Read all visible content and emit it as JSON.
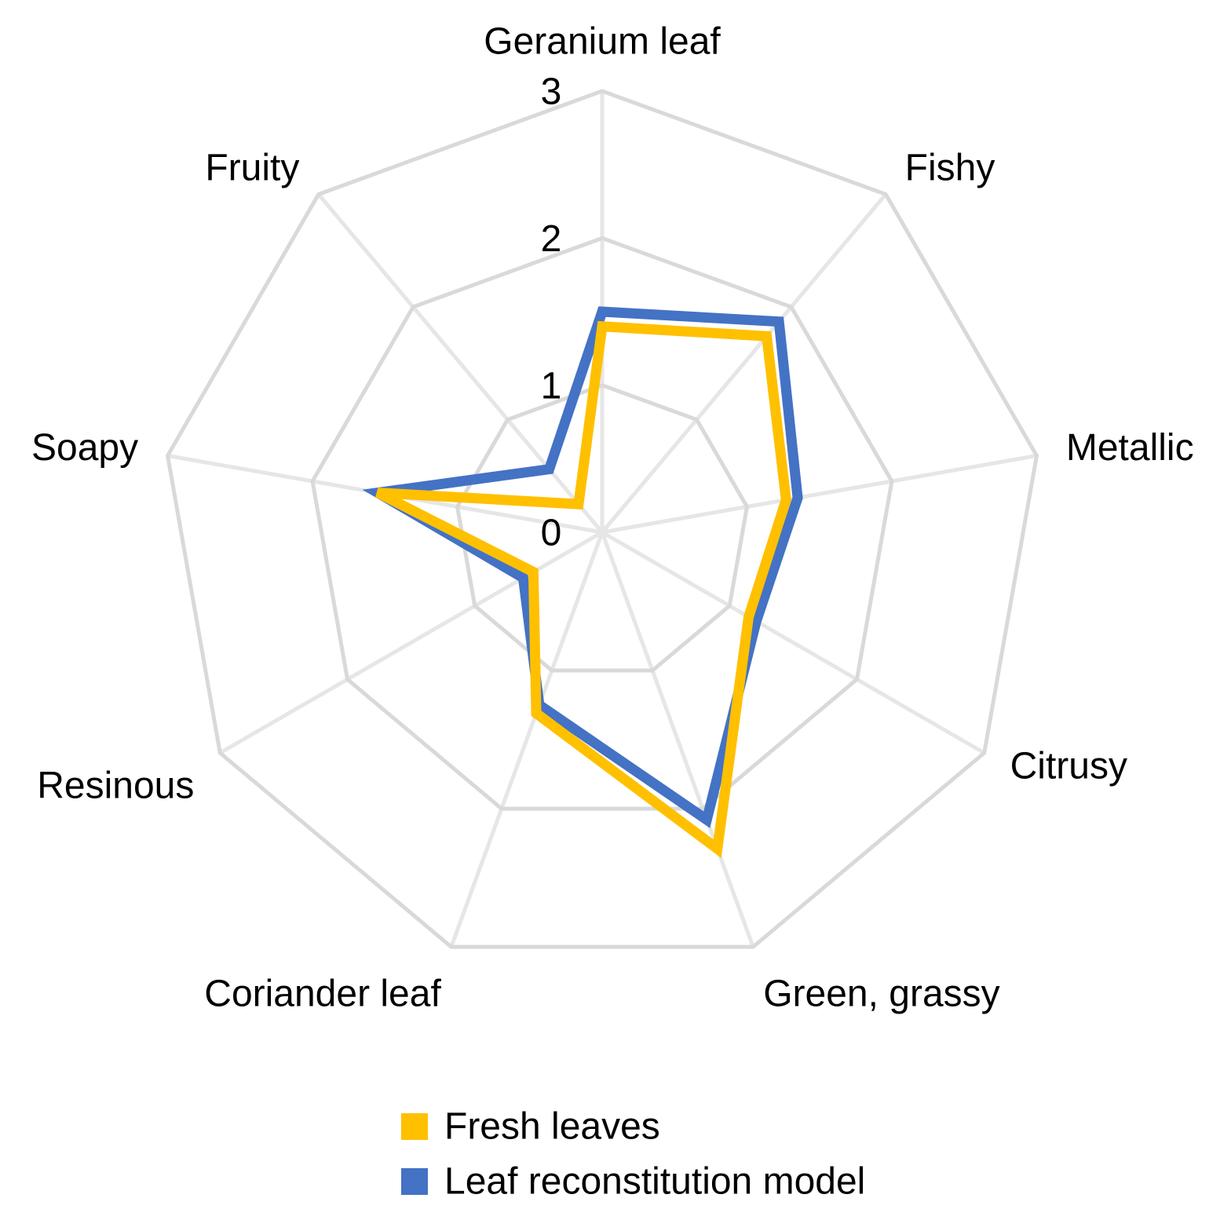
{
  "chart_data": {
    "type": "radar",
    "categories": [
      "Geranium leaf",
      "Fishy",
      "Metallic",
      "Citrusy",
      "Green, grassy",
      "Coriander leaf",
      "Resinous",
      "Soapy",
      "Fruity"
    ],
    "series": [
      {
        "name": "Fresh leaves",
        "color": "#ffc000",
        "values": [
          1.4,
          1.74,
          1.27,
          1.15,
          2.29,
          1.31,
          0.54,
          1.55,
          0.25
        ]
      },
      {
        "name": "Leaf reconstitution model",
        "color": "#4472c4",
        "values": [
          1.5,
          1.87,
          1.35,
          1.21,
          2.08,
          1.25,
          0.62,
          1.55,
          0.56
        ]
      }
    ],
    "ylim": [
      0,
      3
    ],
    "yticks": [
      0,
      1,
      2,
      3
    ],
    "grid": true,
    "legend": "bottom"
  }
}
